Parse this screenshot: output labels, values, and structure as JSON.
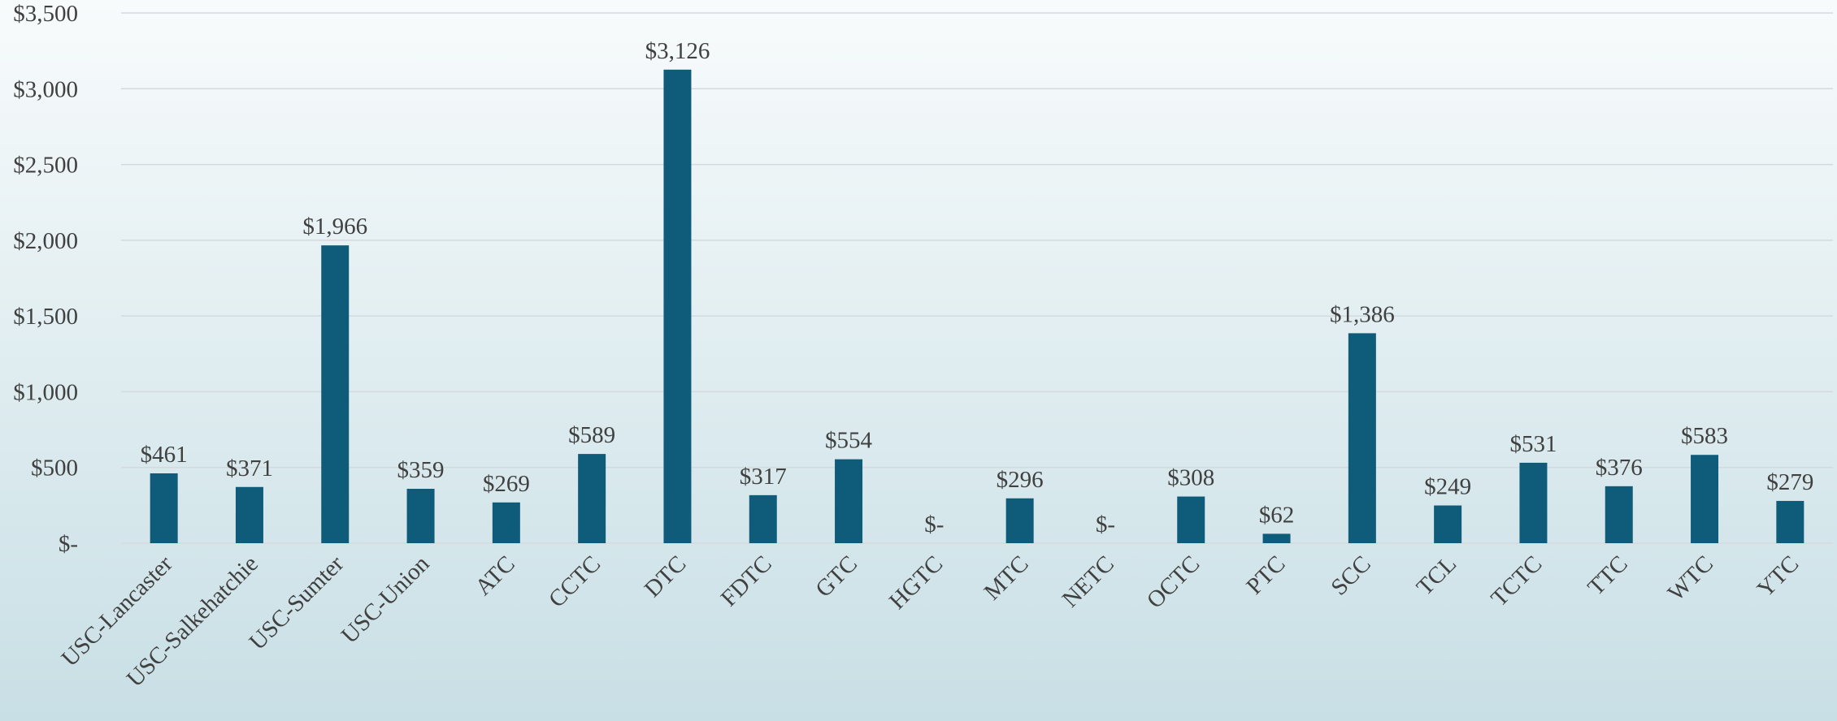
{
  "chart_data": {
    "type": "bar",
    "categories": [
      "USC-Lancaster",
      "USC-Salkehatchie",
      "USC-Sumter",
      "USC-Union",
      "ATC",
      "CCTC",
      "DTC",
      "FDTC",
      "GTC",
      "HGTC",
      "MTC",
      "NETC",
      "OCTC",
      "PTC",
      "SCC",
      "TCL",
      "TCTC",
      "TTC",
      "WTC",
      "YTC"
    ],
    "values": [
      461,
      371,
      1966,
      359,
      269,
      589,
      3126,
      317,
      554,
      0,
      296,
      0,
      308,
      62,
      1386,
      249,
      531,
      376,
      583,
      279
    ],
    "value_labels": [
      "$461",
      "$371",
      "$1,966",
      "$359",
      "$269",
      "$589",
      "$3,126",
      "$317",
      "$554",
      "$-",
      "$296",
      "$-",
      "$308",
      "$62",
      "$1,386",
      "$249",
      "$531",
      "$376",
      "$583",
      "$279"
    ],
    "color": "#0e5c7a",
    "ylim": [
      0,
      3500
    ],
    "yticks": [
      {
        "value": 0,
        "label": "$-"
      },
      {
        "value": 500,
        "label": "$500"
      },
      {
        "value": 1000,
        "label": "$1,000"
      },
      {
        "value": 1500,
        "label": "$1,500"
      },
      {
        "value": 2000,
        "label": "$2,000"
      },
      {
        "value": 2500,
        "label": "$2,500"
      },
      {
        "value": 3000,
        "label": "$3,000"
      },
      {
        "value": 3500,
        "label": "$3,500"
      }
    ],
    "grid": true
  }
}
